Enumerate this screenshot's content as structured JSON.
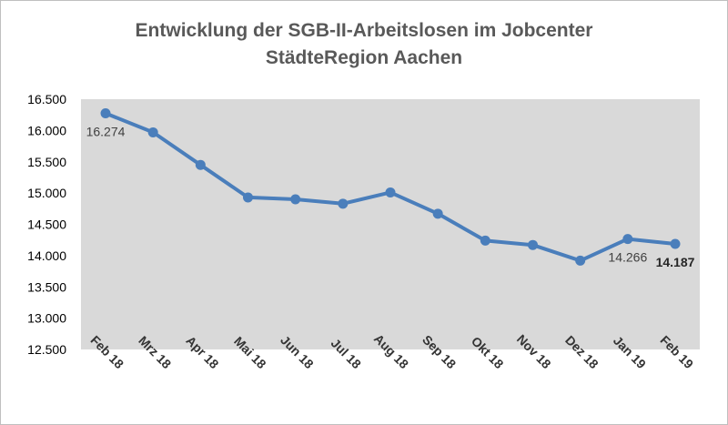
{
  "chart_data": {
    "type": "line",
    "title_lines": [
      "Entwicklung der SGB-II-Arbeitslosen im Jobcenter",
      "StädteRegion Aachen"
    ],
    "categories": [
      "Feb 18",
      "Mrz 18",
      "Apr 18",
      "Mai 18",
      "Jun 18",
      "Jul 18",
      "Aug 18",
      "Sep 18",
      "Okt 18",
      "Nov 18",
      "Dez 18",
      "Jan 19",
      "Feb 19"
    ],
    "values": [
      16274,
      15970,
      15450,
      14930,
      14900,
      14830,
      15010,
      14670,
      14240,
      14170,
      13920,
      14266,
      14187
    ],
    "ylim": [
      12500,
      16500
    ],
    "yticks": [
      12500,
      13000,
      13500,
      14000,
      14500,
      15000,
      15500,
      16000,
      16500
    ],
    "ytick_labels": [
      "12.500",
      "13.000",
      "13.500",
      "14.000",
      "14.500",
      "15.000",
      "15.500",
      "16.000",
      "16.500"
    ],
    "data_labels": [
      {
        "index": 0,
        "text": "16.274",
        "bold": false
      },
      {
        "index": 11,
        "text": "14.266",
        "bold": false
      },
      {
        "index": 12,
        "text": "14.187",
        "bold": true
      }
    ],
    "grid": false,
    "legend": "none",
    "colors": {
      "line": "#4a7ebb",
      "plot_background": "#d9d9d9"
    }
  }
}
